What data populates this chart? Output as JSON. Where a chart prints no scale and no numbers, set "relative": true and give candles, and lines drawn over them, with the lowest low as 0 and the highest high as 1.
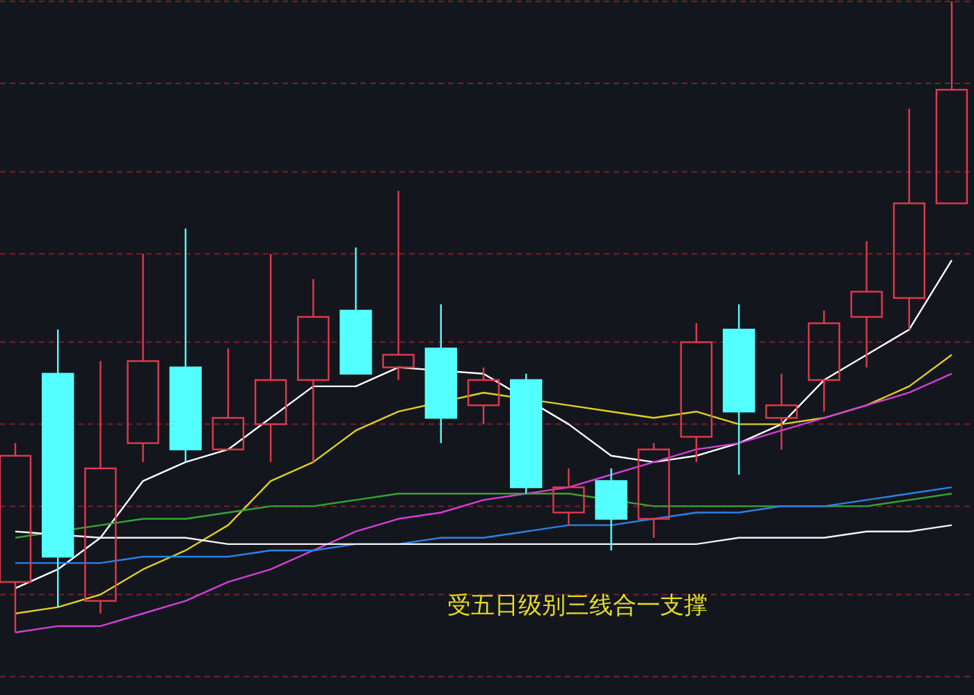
{
  "chart_data": {
    "type": "candlestick",
    "relative": true,
    "colors": [
      "#e23a4c",
      "#54ffff",
      "#e23a4c",
      "#e23a4c",
      "#54ffff",
      "#e23a4c",
      "#e23a4c",
      "#e23a4c",
      "#54ffff",
      "#e23a4c",
      "#54ffff",
      "#e23a4c",
      "#54ffff",
      "#e23a4c",
      "#54ffff",
      "#e23a4c",
      "#e23a4c",
      "#54ffff",
      "#e23a4c",
      "#e23a4c",
      "#e23a4c",
      "#e23a4c",
      "#e23a4c"
    ],
    "categories": [
      null,
      null,
      null,
      null,
      null,
      null,
      null,
      null,
      null,
      null,
      null,
      null,
      null,
      null,
      null,
      null,
      null,
      null,
      null,
      null,
      null,
      null,
      null
    ],
    "ohlc": [
      [
        0.08,
        0.3,
        0.0,
        0.28
      ],
      [
        0.41,
        0.48,
        0.04,
        0.12
      ],
      [
        0.05,
        0.43,
        0.03,
        0.26
      ],
      [
        0.3,
        0.6,
        0.27,
        0.43
      ],
      [
        0.42,
        0.64,
        0.27,
        0.29
      ],
      [
        0.29,
        0.45,
        0.29,
        0.34
      ],
      [
        0.33,
        0.6,
        0.27,
        0.4
      ],
      [
        0.4,
        0.56,
        0.27,
        0.5
      ],
      [
        0.51,
        0.61,
        0.41,
        0.41
      ],
      [
        0.42,
        0.7,
        0.4,
        0.44
      ],
      [
        0.45,
        0.52,
        0.3,
        0.34
      ],
      [
        0.36,
        0.42,
        0.33,
        0.4
      ],
      [
        0.4,
        0.41,
        0.22,
        0.23
      ],
      [
        0.19,
        0.26,
        0.17,
        0.23
      ],
      [
        0.24,
        0.26,
        0.13,
        0.18
      ],
      [
        0.18,
        0.3,
        0.15,
        0.29
      ],
      [
        0.31,
        0.49,
        0.27,
        0.46
      ],
      [
        0.48,
        0.52,
        0.25,
        0.35
      ],
      [
        0.34,
        0.41,
        0.29,
        0.36
      ],
      [
        0.4,
        0.51,
        0.35,
        0.49
      ],
      [
        0.5,
        0.62,
        0.42,
        0.54
      ],
      [
        0.53,
        0.83,
        0.48,
        0.68
      ],
      [
        0.68,
        1.0,
        0.68,
        0.86
      ]
    ],
    "series": [
      {
        "type": "line",
        "color": "#ffffff",
        "values": [
          0.07,
          0.1,
          0.15,
          0.24,
          0.27,
          0.29,
          0.34,
          0.39,
          0.39,
          0.42,
          null,
          0.41,
          null,
          0.33,
          0.28,
          0.27,
          0.28,
          0.3,
          0.33,
          0.4,
          0.44,
          0.48,
          0.59
        ]
      },
      {
        "type": "line",
        "color": "#e0d020",
        "values": [
          0.03,
          0.04,
          0.06,
          0.1,
          0.13,
          0.17,
          0.24,
          0.27,
          0.32,
          0.35,
          null,
          0.38,
          null,
          0.36,
          0.35,
          0.34,
          0.35,
          0.33,
          0.33,
          0.34,
          0.36,
          0.39,
          0.44
        ]
      },
      {
        "type": "line",
        "color": "#d43fd8",
        "values": [
          0.0,
          0.01,
          0.01,
          0.03,
          0.05,
          0.08,
          0.1,
          0.13,
          0.16,
          0.18,
          0.19,
          0.21,
          0.22,
          0.23,
          0.25,
          0.27,
          0.29,
          0.3,
          0.32,
          0.34,
          0.36,
          0.38,
          0.41
        ]
      },
      {
        "type": "line",
        "color": "#34a534",
        "values": [
          0.15,
          null,
          0.17,
          0.18,
          0.18,
          0.19,
          0.2,
          0.2,
          0.21,
          0.22,
          0.22,
          0.22,
          0.22,
          0.22,
          null,
          0.2,
          0.2,
          0.2,
          0.2,
          0.2,
          0.2,
          0.21,
          0.22
        ]
      },
      {
        "type": "line",
        "color": "#2b82e6",
        "values": [
          0.11,
          0.11,
          0.11,
          0.12,
          0.12,
          0.12,
          0.13,
          0.13,
          0.14,
          0.14,
          0.15,
          0.15,
          0.16,
          0.17,
          0.17,
          0.18,
          0.19,
          0.19,
          0.2,
          0.2,
          0.21,
          0.22,
          0.23
        ]
      },
      {
        "type": "line",
        "color": "#f2f2f2",
        "values": [
          0.16,
          null,
          0.15,
          0.15,
          0.15,
          0.14,
          0.14,
          0.14,
          0.14,
          0.14,
          0.14,
          0.14,
          0.14,
          0.14,
          0.14,
          0.14,
          0.14,
          0.15,
          0.15,
          0.15,
          0.16,
          0.16,
          0.17
        ]
      }
    ],
    "ref_lines": [
      {
        "axis": "y",
        "value": 1.0,
        "color": "#7a1f26",
        "line_style": "dashed"
      },
      {
        "axis": "y",
        "value": 0.87,
        "color": "#7a1f26",
        "line_style": "dashed"
      },
      {
        "axis": "y",
        "value": 0.73,
        "color": "#7a1f26",
        "line_style": "dashed"
      },
      {
        "axis": "y",
        "value": 0.6,
        "color": "#7a1f26",
        "line_style": "dashed"
      },
      {
        "axis": "y",
        "value": 0.46,
        "color": "#7a1f26",
        "line_style": "dashed"
      },
      {
        "axis": "y",
        "value": 0.33,
        "color": "#7a1f26",
        "line_style": "dashed"
      },
      {
        "axis": "y",
        "value": 0.2,
        "color": "#7a1f26",
        "line_style": "dashed"
      },
      {
        "axis": "y",
        "value": 0.06,
        "color": "#7a1f26",
        "line_style": "dashed"
      },
      {
        "axis": "y",
        "value": -0.07,
        "color": "#7a1f26",
        "line_style": "dashed"
      }
    ],
    "annotations": [
      "受五日级别三线合一支撑"
    ]
  }
}
